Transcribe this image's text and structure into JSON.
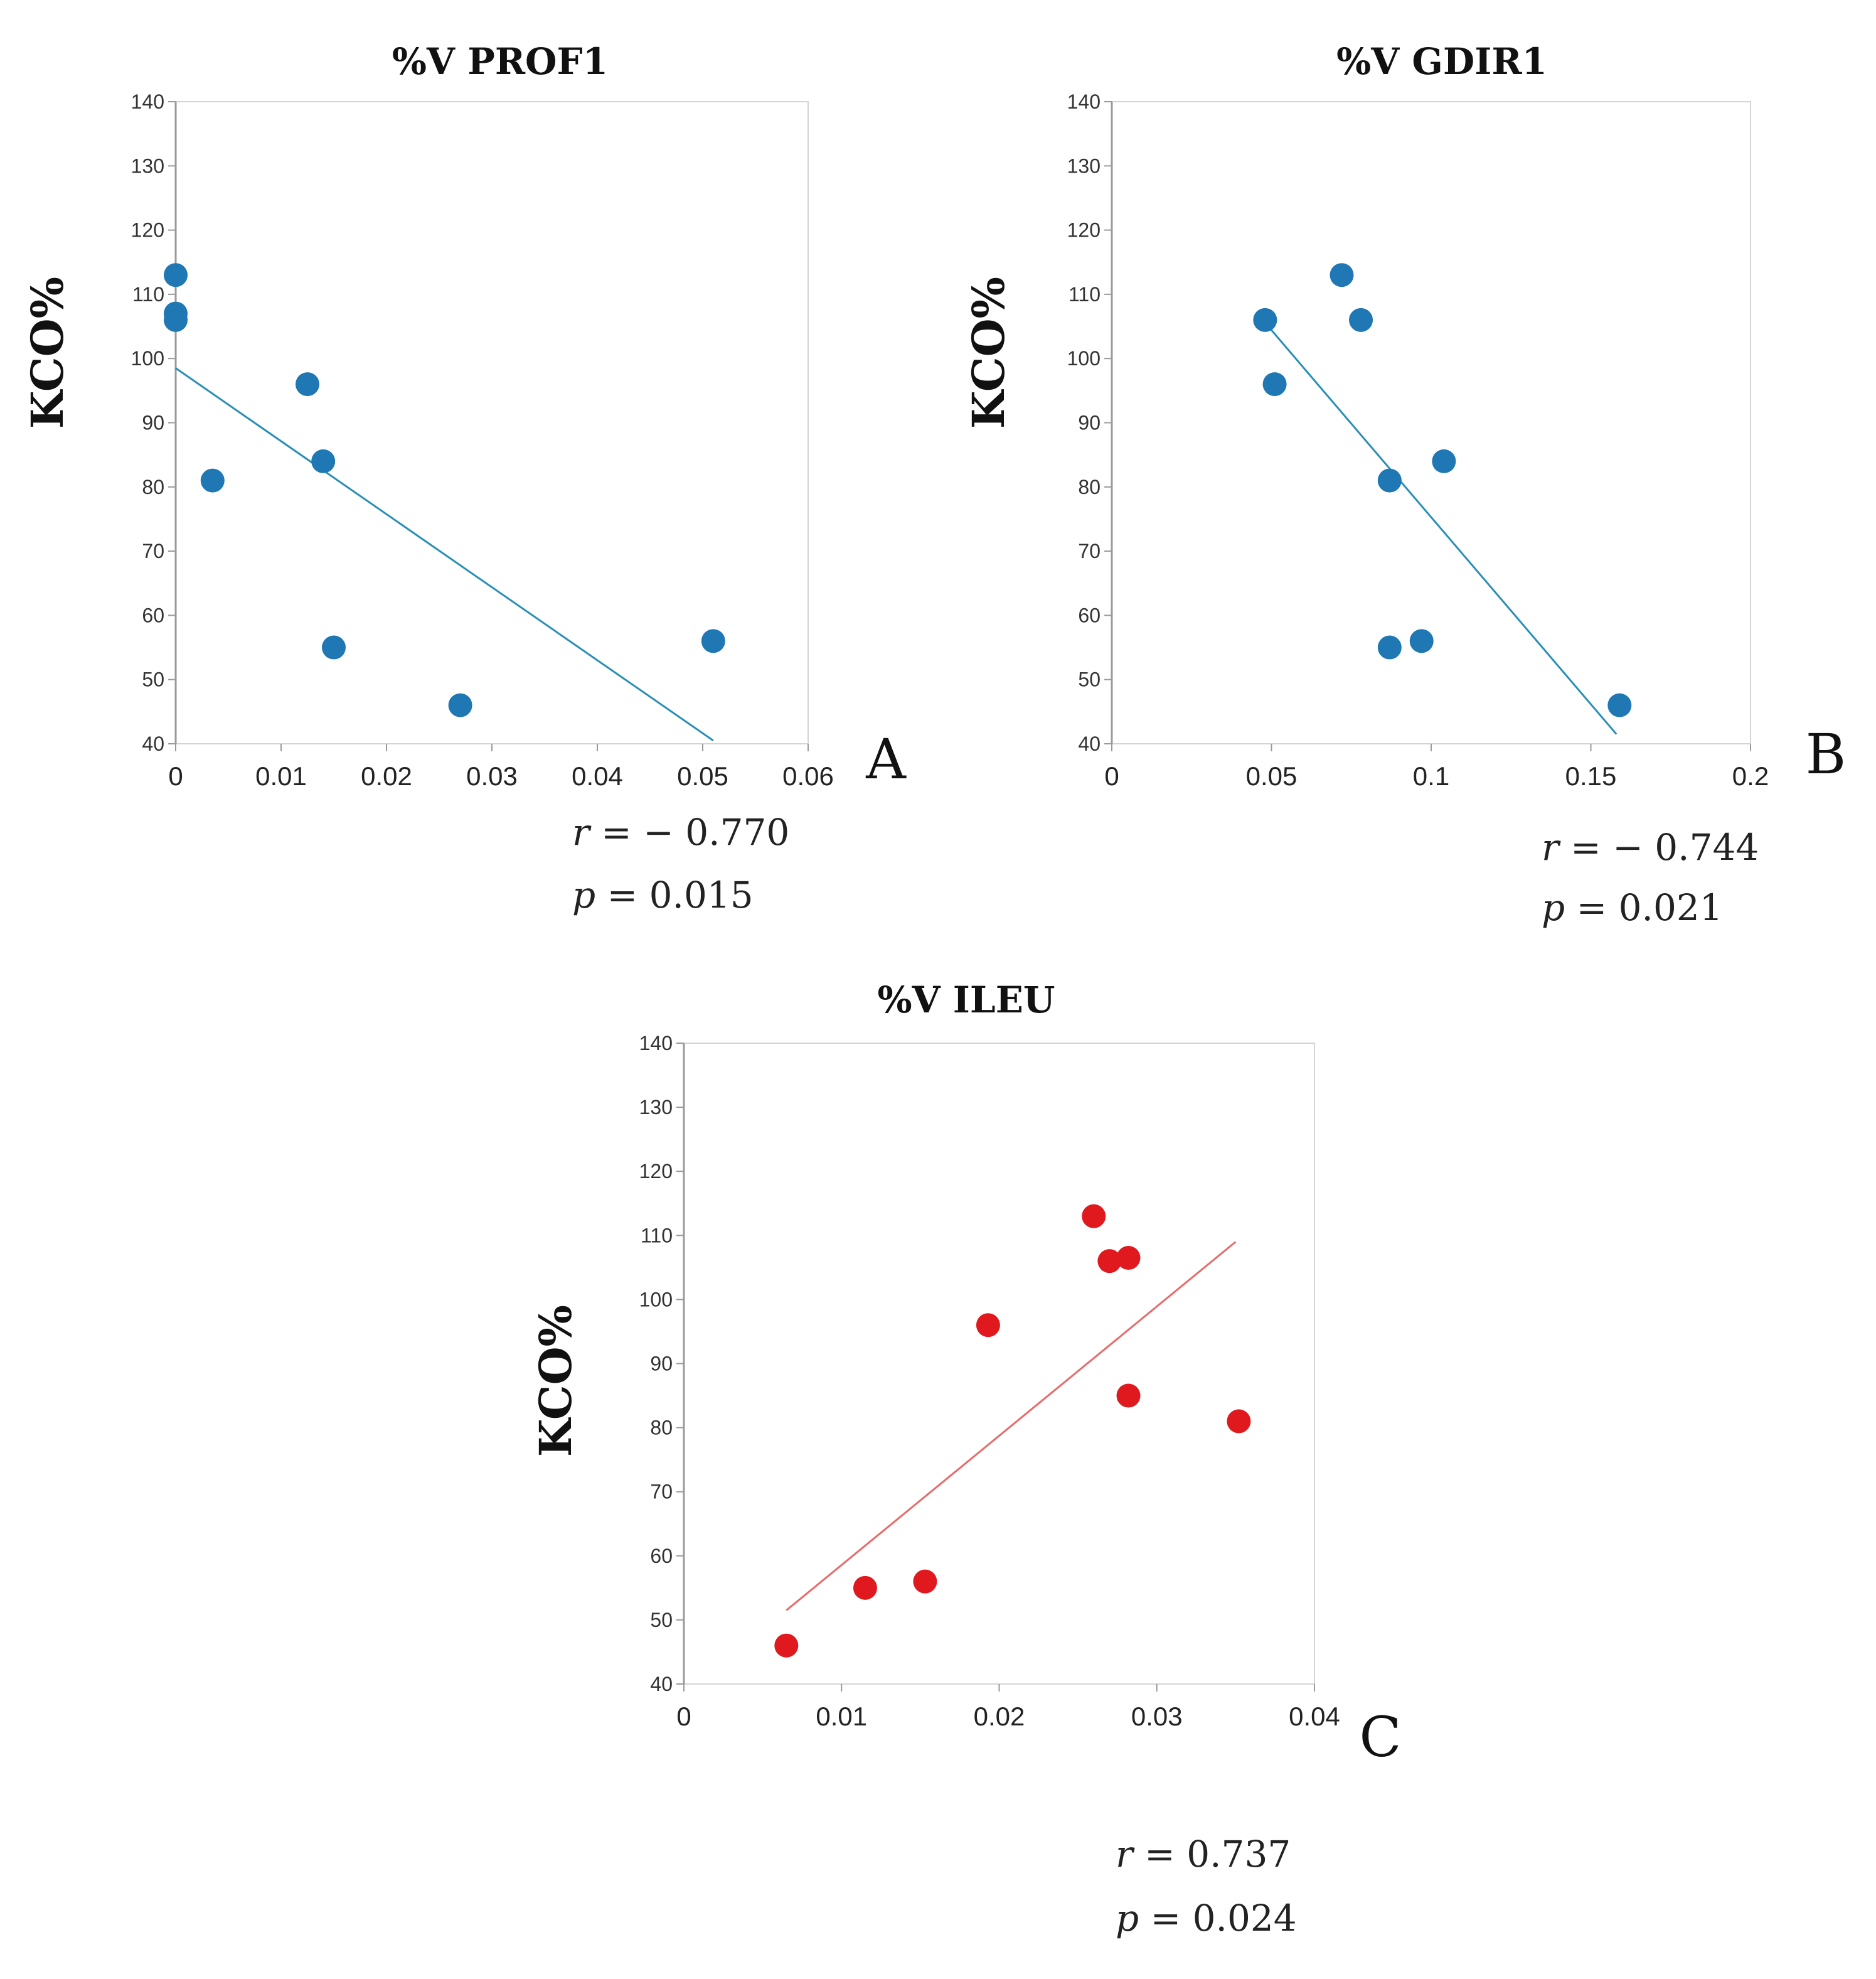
{
  "chart_data": [
    {
      "type": "scatter",
      "panel": "A",
      "title": "%V PROF1",
      "xlabel": "",
      "ylabel": "KCO%",
      "xlim": [
        0,
        0.06
      ],
      "ylim": [
        40,
        140
      ],
      "x_ticks": [
        "0",
        "0.01",
        "0.02",
        "0.03",
        "0.04",
        "0.05",
        "0.06"
      ],
      "y_ticks": [
        "40",
        "50",
        "60",
        "70",
        "80",
        "90",
        "100",
        "110",
        "120",
        "130",
        "140"
      ],
      "color": "#1f77b4",
      "trendline_color": "#2a8fb8",
      "points": [
        {
          "x": 0.0,
          "y": 113
        },
        {
          "x": 0.0,
          "y": 106
        },
        {
          "x": 0.0,
          "y": 107
        },
        {
          "x": 0.0035,
          "y": 81
        },
        {
          "x": 0.0125,
          "y": 96
        },
        {
          "x": 0.014,
          "y": 84
        },
        {
          "x": 0.015,
          "y": 55
        },
        {
          "x": 0.027,
          "y": 46
        },
        {
          "x": 0.051,
          "y": 56
        }
      ],
      "trendline": {
        "x": [
          0.0,
          0.051
        ],
        "y": [
          98.5,
          40.5
        ]
      },
      "stats": {
        "r_label": "r",
        "r_value": "= − 0.770",
        "p_label": "p",
        "p_value": "= 0.015"
      }
    },
    {
      "type": "scatter",
      "panel": "B",
      "title": "%V GDIR1",
      "xlabel": "",
      "ylabel": "KCO%",
      "xlim": [
        0,
        0.2
      ],
      "ylim": [
        40,
        140
      ],
      "x_ticks": [
        "0",
        "0.05",
        "0.1",
        "0.15",
        "0.2"
      ],
      "y_ticks": [
        "40",
        "50",
        "60",
        "70",
        "80",
        "90",
        "100",
        "110",
        "120",
        "130",
        "140"
      ],
      "color": "#1f77b4",
      "trendline_color": "#2a8fb8",
      "points": [
        {
          "x": 0.048,
          "y": 106
        },
        {
          "x": 0.051,
          "y": 96
        },
        {
          "x": 0.072,
          "y": 113
        },
        {
          "x": 0.078,
          "y": 106
        },
        {
          "x": 0.087,
          "y": 81
        },
        {
          "x": 0.087,
          "y": 55
        },
        {
          "x": 0.097,
          "y": 56
        },
        {
          "x": 0.104,
          "y": 84
        },
        {
          "x": 0.159,
          "y": 46
        }
      ],
      "trendline": {
        "x": [
          0.049,
          0.158
        ],
        "y": [
          105,
          41.5
        ]
      },
      "stats": {
        "r_label": "r",
        "r_value": "= − 0.744",
        "p_label": "p",
        "p_value": "= 0.021"
      }
    },
    {
      "type": "scatter",
      "panel": "C",
      "title": "%V ILEU",
      "xlabel": "",
      "ylabel": "KCO%",
      "xlim": [
        0,
        0.04
      ],
      "ylim": [
        40,
        140
      ],
      "x_ticks": [
        "0",
        "0.01",
        "0.02",
        "0.03",
        "0.04"
      ],
      "y_ticks": [
        "40",
        "50",
        "60",
        "70",
        "80",
        "90",
        "100",
        "110",
        "120",
        "130",
        "140"
      ],
      "color": "#e0191e",
      "trendline_color": "#e86a6a",
      "points": [
        {
          "x": 0.0065,
          "y": 46
        },
        {
          "x": 0.0115,
          "y": 55
        },
        {
          "x": 0.0153,
          "y": 56
        },
        {
          "x": 0.0193,
          "y": 96
        },
        {
          "x": 0.026,
          "y": 113
        },
        {
          "x": 0.027,
          "y": 106
        },
        {
          "x": 0.0282,
          "y": 106.5
        },
        {
          "x": 0.0282,
          "y": 85
        },
        {
          "x": 0.0352,
          "y": 81
        }
      ],
      "trendline": {
        "x": [
          0.0065,
          0.035
        ],
        "y": [
          51.5,
          109
        ]
      },
      "stats": {
        "r_label": "r",
        "r_value": "= 0.737",
        "p_label": "p",
        "p_value": "= 0.024"
      }
    }
  ]
}
